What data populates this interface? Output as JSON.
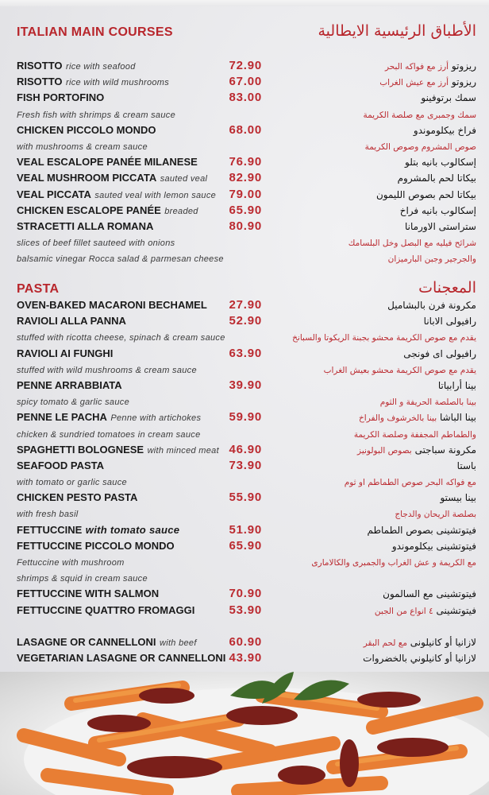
{
  "main_courses": {
    "title": "ITALIAN MAIN COURSES",
    "title_ar": "الأطباق الرئيسية الايطالية",
    "rows": [
      {
        "name": "RISOTTO",
        "desc": "rice with seafood",
        "price": "72.90",
        "ar_b": "ريزوتو",
        "ar_r": "أرز مع فواكه البحر"
      },
      {
        "name": "RISOTTO",
        "desc": "rice with wild mushrooms",
        "price": "67.00",
        "ar_b": "ريزوتو",
        "ar_r": "أرز مع عيش الغراب"
      },
      {
        "name": "FISH PORTOFINO",
        "desc": "",
        "price": "83.00",
        "ar_b": "سمك برتوفينو",
        "ar_r": ""
      },
      {
        "name": "",
        "desc": "Fresh fish with shrimps & cream sauce",
        "price": "",
        "ar_b": "",
        "ar_r": "سمك وجمبرى مع صلصة الكريمة"
      },
      {
        "name": "CHICKEN PICCOLO MONDO",
        "desc": "",
        "price": "68.00",
        "ar_b": "فراخ بيكلوموندو",
        "ar_r": ""
      },
      {
        "name": "",
        "desc": "with mushrooms & cream sauce",
        "price": "",
        "ar_b": "",
        "ar_r": "صوص المشروم وصوص الكريمة"
      },
      {
        "name": "VEAL ESCALOPE PANÉE MILANESE",
        "desc": "",
        "price": "76.90",
        "ar_b": "إسكالوب بانيه بتلو",
        "ar_r": ""
      },
      {
        "name": "VEAL MUSHROOM PICCATA",
        "desc": "sauted veal",
        "price": "82.90",
        "ar_b": "بيكاتا لحم بالمشروم",
        "ar_r": ""
      },
      {
        "name": "VEAL PICCATA",
        "desc": "sauted veal with lemon sauce",
        "price": "79.00",
        "ar_b": "بيكاتا لحم بصوص الليمون",
        "ar_r": ""
      },
      {
        "name": "CHICKEN ESCALOPE PANÉE",
        "desc": "breaded",
        "price": "65.90",
        "ar_b": "إسكالوب بانيه فراخ",
        "ar_r": ""
      },
      {
        "name": "STRACETTI ALLA ROMANA",
        "desc": "",
        "price": "80.90",
        "ar_b": "ستراستى الاورمانا",
        "ar_r": ""
      },
      {
        "name": "",
        "desc": "slices of beef fillet sauteed with onions",
        "price": "",
        "ar_b": "",
        "ar_r": "شرائح فيليه مع البصل وخل البلسامك"
      },
      {
        "name": "",
        "desc": "balsamic vinegar Rocca salad & parmesan cheese",
        "price": "",
        "ar_b": "",
        "ar_r": "والجرجير وجبن البارميزان"
      }
    ]
  },
  "pasta": {
    "title": "PASTA",
    "title_ar": "المعجنات",
    "rows": [
      {
        "name": "OVEN-BAKED MACARONI BECHAMEL",
        "desc": "",
        "price": "27.90",
        "ar_b": "مكرونة فرن بالبشاميل",
        "ar_r": ""
      },
      {
        "name": "RAVIOLI ALLA PANNA",
        "desc": "",
        "price": "52.90",
        "ar_b": "رافيولى الابانا",
        "ar_r": ""
      },
      {
        "name": "",
        "desc": "stuffed with ricotta cheese, spinach & cream sauce",
        "price": "",
        "ar_b": "",
        "ar_r": "يقدم مع صوص الكريمة محشو بجبنة الريكوتا والسبانخ"
      },
      {
        "name": "RAVIOLI AI FUNGHI",
        "desc": "",
        "price": "63.90",
        "ar_b": "رافيولى اى فونجى",
        "ar_r": ""
      },
      {
        "name": "",
        "desc": "stuffed with wild mushrooms & cream sauce",
        "price": "",
        "ar_b": "",
        "ar_r": "يقدم مع صوص الكريمة محشو بعيش الغراب"
      },
      {
        "name": "PENNE ARRABBIATA",
        "desc": "",
        "price": "39.90",
        "ar_b": "بينا أرابياتا",
        "ar_r": ""
      },
      {
        "name": "",
        "desc": "spicy tomato & garlic sauce",
        "price": "",
        "ar_b": "",
        "ar_r": "بينا بالصلصة الحريفة و الثوم"
      },
      {
        "name": "PENNE LE PACHA",
        "desc": "Penne with artichokes",
        "price": "59.90",
        "ar_b": "بينا الباشا",
        "ar_r": "بينا بالخرشوف والفراخ"
      },
      {
        "name": "",
        "desc": "chicken & sundried tomatoes in cream sauce",
        "price": "",
        "ar_b": "",
        "ar_r": "والطماطم المجففة وصلصة الكريمة"
      },
      {
        "name": "SPAGHETTI BOLOGNESE",
        "desc": "with minced meat",
        "price": "46.90",
        "ar_b": "مكرونة سباجتى",
        "ar_r": "بصوص البولونيز"
      },
      {
        "name": "SEAFOOD PASTA",
        "desc": "",
        "price": "73.90",
        "ar_b": "باستا",
        "ar_r": ""
      },
      {
        "name": "",
        "desc": "with tomato or garlic sauce",
        "price": "",
        "ar_b": "",
        "ar_r": "مع فواكه البحر  صوص الطماطم او ثوم"
      },
      {
        "name": "CHICKEN PESTO PASTA",
        "desc": "",
        "price": "55.90",
        "ar_b": "بينا بيستو",
        "ar_r": ""
      },
      {
        "name": "",
        "desc": "with fresh basil",
        "price": "",
        "ar_b": "",
        "ar_r": "بصلصة الريحان والدجاج"
      },
      {
        "name": "FETTUCCINE",
        "desc": "with tomato sauce",
        "price": "51.90",
        "ar_b": "فيتوتشينى بصوص الطماطم",
        "ar_r": "",
        "bold_desc": true
      },
      {
        "name": "FETTUCCINE PICCOLO MONDO",
        "desc": "",
        "price": "65.90",
        "ar_b": "فيتوتشينى بيكلوموندو",
        "ar_r": ""
      },
      {
        "name": "",
        "desc": "Fettuccine with mushroom",
        "price": "",
        "ar_b": "",
        "ar_r": "مع الكريمة و عش الغراب والجمبرى والكالامارى"
      },
      {
        "name": "",
        "desc": " shrimps & squid in cream sauce",
        "price": "",
        "ar_b": "",
        "ar_r": ""
      },
      {
        "name": "FETTUCCINE WITH SALMON",
        "desc": "",
        "price": "70.90",
        "ar_b": "فيتوتشينى مع السالمون",
        "ar_r": ""
      },
      {
        "name": "FETTUCCINE QUATTRO FROMAGGI",
        "desc": "",
        "price": "53.90",
        "ar_b": "فيتوتشينى",
        "ar_r": "٤ انواع من الجبن"
      },
      {
        "spacer": true
      },
      {
        "name": "LASAGNE OR CANNELLONI",
        "desc": "with beef",
        "price": "60.90",
        "ar_b": "لازانيا  أو كانيلونى",
        "ar_r": "مع لحم البقر"
      },
      {
        "name": "VEGETARIAN LASAGNE OR CANNELLONI",
        "desc": "",
        "price": "43.90",
        "ar_b": "لازانيا أو كانيلوني بالخضروات",
        "ar_r": ""
      }
    ]
  },
  "colors": {
    "accent": "#bb2a30",
    "text": "#1a1a1a",
    "background": "#e9e9ec"
  },
  "photo": {
    "subject": "penne-pasta-with-sundried-tomatoes-and-basil"
  }
}
